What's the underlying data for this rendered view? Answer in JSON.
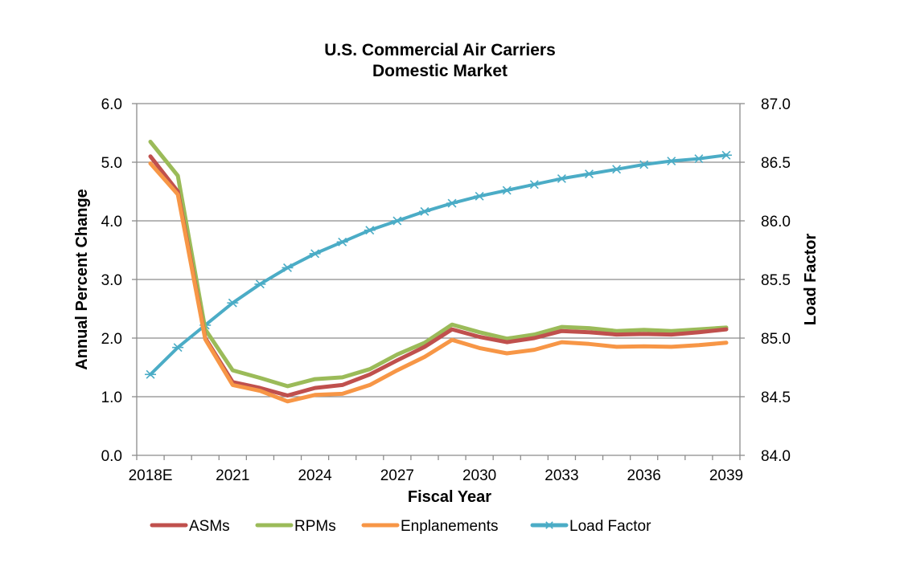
{
  "chart_data": {
    "type": "line",
    "title": "U.S. Commercial Air Carriers",
    "subtitle": "Domestic Market",
    "xlabel": "Fiscal Year",
    "ylabel": "Annual Percent Change",
    "y2label": "Load Factor",
    "x": [
      "2018E",
      "2019",
      "2020",
      "2021",
      "2022",
      "2023",
      "2024",
      "2025",
      "2026",
      "2027",
      "2028",
      "2029",
      "2030",
      "2031",
      "2032",
      "2033",
      "2034",
      "2035",
      "2036",
      "2037",
      "2038",
      "2039"
    ],
    "x_tick_labels": [
      "2018E",
      "2021",
      "2024",
      "2027",
      "2030",
      "2033",
      "2036",
      "2039"
    ],
    "ylim": [
      0,
      6
    ],
    "y_ticks": [
      "0.0",
      "1.0",
      "2.0",
      "3.0",
      "4.0",
      "5.0",
      "6.0"
    ],
    "y2lim": [
      84,
      87
    ],
    "y2_ticks": [
      "84.0",
      "84.5",
      "85.0",
      "85.5",
      "86.0",
      "86.5",
      "87.0"
    ],
    "grid": true,
    "legend_position": "bottom",
    "series": [
      {
        "name": "ASMs",
        "axis": "left",
        "color": "#c0504d",
        "values": [
          5.1,
          4.5,
          2.0,
          1.25,
          1.15,
          1.02,
          1.15,
          1.2,
          1.38,
          1.62,
          1.85,
          2.15,
          2.02,
          1.93,
          2.0,
          2.12,
          2.1,
          2.06,
          2.07,
          2.06,
          2.1,
          2.15
        ]
      },
      {
        "name": "RPMs",
        "axis": "left",
        "color": "#9bbb59",
        "values": [
          5.35,
          4.77,
          2.15,
          1.45,
          1.32,
          1.18,
          1.3,
          1.33,
          1.47,
          1.72,
          1.92,
          2.23,
          2.1,
          1.99,
          2.06,
          2.19,
          2.17,
          2.12,
          2.14,
          2.12,
          2.15,
          2.18
        ]
      },
      {
        "name": "Enplanements",
        "axis": "left",
        "color": "#f79646",
        "values": [
          4.98,
          4.45,
          1.98,
          1.2,
          1.1,
          0.92,
          1.03,
          1.05,
          1.2,
          1.45,
          1.68,
          1.97,
          1.83,
          1.74,
          1.8,
          1.93,
          1.9,
          1.85,
          1.86,
          1.85,
          1.88,
          1.92
        ]
      },
      {
        "name": "Load Factor",
        "axis": "right",
        "color": "#4bacc6",
        "values": [
          84.69,
          84.92,
          85.11,
          85.3,
          85.46,
          85.6,
          85.72,
          85.82,
          85.92,
          86.0,
          86.08,
          86.15,
          86.21,
          86.26,
          86.31,
          86.36,
          86.4,
          86.44,
          86.48,
          86.51,
          86.53,
          86.56
        ]
      }
    ]
  }
}
